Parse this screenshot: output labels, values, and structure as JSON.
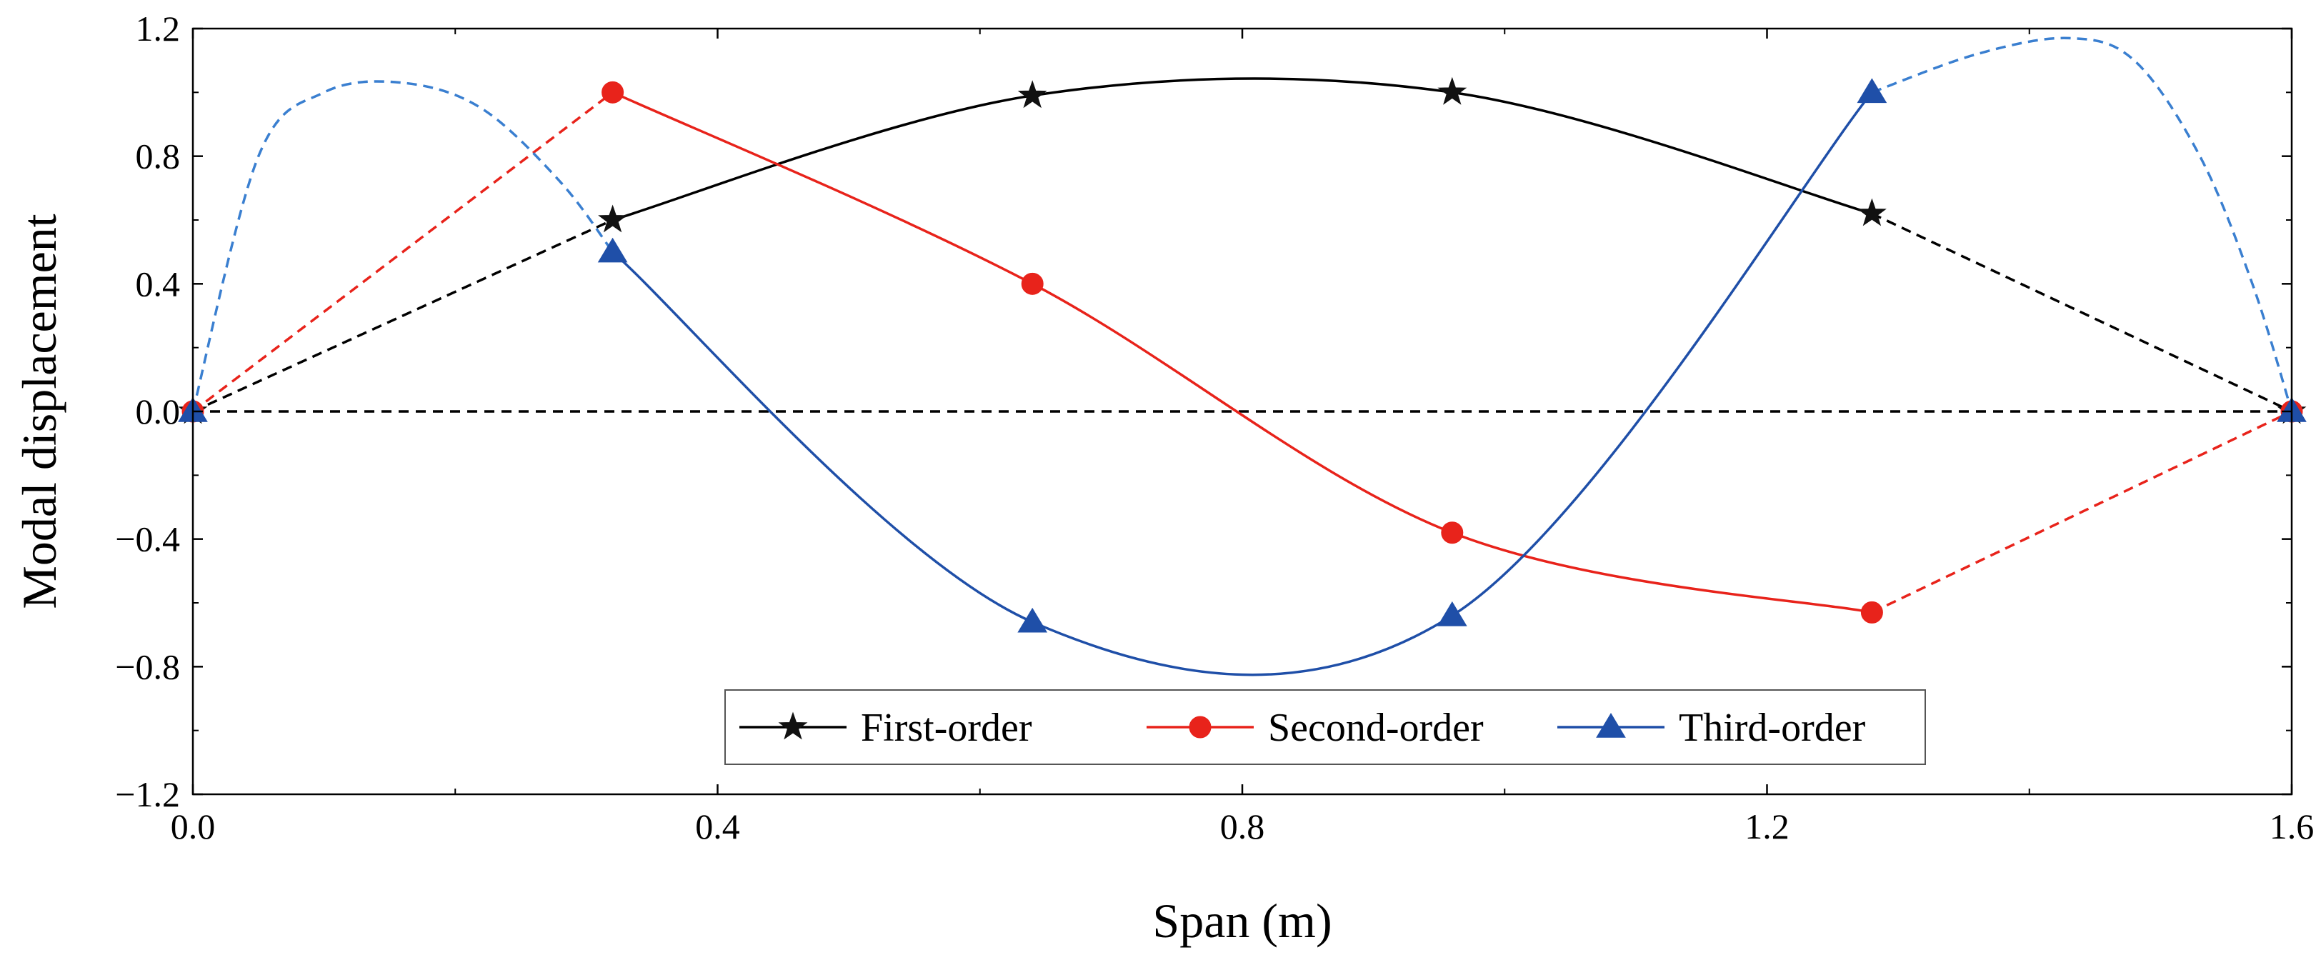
{
  "chart_data": {
    "type": "line",
    "title": "",
    "xlabel": "Span (m)",
    "ylabel": "Modal displacement",
    "xlim": [
      0.0,
      1.6
    ],
    "ylim": [
      -1.2,
      1.2
    ],
    "x_ticks": [
      "0.0",
      "0.4",
      "0.8",
      "1.2",
      "1.6"
    ],
    "y_ticks": [
      "1.2",
      "0.8",
      "0.4",
      "0.0",
      "−0.4",
      "−0.8",
      "−1.2"
    ],
    "grid": false,
    "legend_position": "bottom-center",
    "reference_line": {
      "y": 0.0,
      "style": "dashed",
      "color": "#000000"
    },
    "series": [
      {
        "name": "First-order",
        "color": "#000000",
        "marker": "star",
        "x": [
          0.0,
          0.32,
          0.64,
          0.96,
          1.28,
          1.6
        ],
        "y": [
          0.0,
          0.6,
          0.99,
          1.0,
          0.62,
          0.0
        ],
        "solid_range": [
          1,
          4
        ],
        "extra_curve": []
      },
      {
        "name": "Second-order",
        "color": "#e8231b",
        "marker": "circle",
        "x": [
          0.0,
          0.32,
          0.64,
          0.96,
          1.28,
          1.6
        ],
        "y": [
          0.0,
          1.0,
          0.4,
          -0.38,
          -0.63,
          0.0
        ],
        "solid_range": [
          1,
          4
        ],
        "extra_curve": []
      },
      {
        "name": "Third-order",
        "color": "#1f4fa8",
        "dashed_color": "#3a7fd0",
        "marker": "triangle",
        "x": [
          0.0,
          0.32,
          0.64,
          0.96,
          1.28,
          1.6
        ],
        "y": [
          0.0,
          0.5,
          -0.66,
          -0.64,
          1.0,
          0.0
        ],
        "solid_range": [
          1,
          4
        ],
        "extra_curve": [
          {
            "segment": "left",
            "x": [
              0.0,
              0.05,
              0.1,
              0.16,
              0.22,
              0.28,
              0.32
            ],
            "y": [
              0.0,
              0.8,
              1.0,
              1.03,
              0.95,
              0.72,
              0.5
            ]
          },
          {
            "segment": "right",
            "x": [
              1.28,
              1.36,
              1.43,
              1.48,
              1.53,
              1.57,
              1.6
            ],
            "y": [
              1.0,
              1.12,
              1.17,
              1.1,
              0.8,
              0.4,
              0.0
            ]
          }
        ]
      }
    ]
  }
}
